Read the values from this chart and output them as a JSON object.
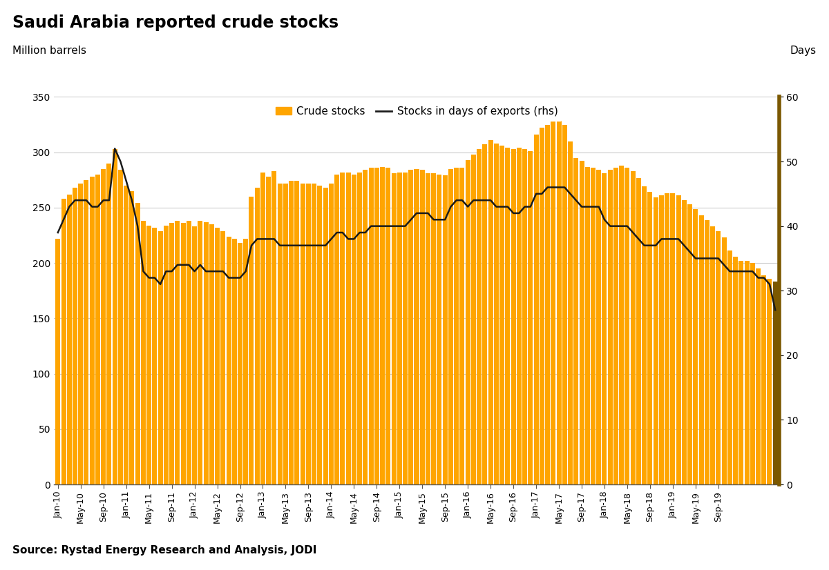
{
  "title": "Saudi Arabia reported crude stocks",
  "subtitle_left": "Million barrels",
  "subtitle_right": "Days",
  "source": "Source: Rystad Energy Research and Analysis, JODI",
  "bar_color": "#FFA500",
  "line_color": "#1a1a1a",
  "ylim_left": [
    0,
    350
  ],
  "ylim_right": [
    0,
    60
  ],
  "yticks_left": [
    0,
    50,
    100,
    150,
    200,
    250,
    300,
    350
  ],
  "yticks_right": [
    0,
    10,
    20,
    30,
    40,
    50,
    60
  ],
  "legend_bar": "Crude stocks",
  "legend_line": "Stocks in days of exports (rhs)",
  "bar_values": [
    222,
    258,
    262,
    268,
    272,
    275,
    278,
    280,
    285,
    290,
    303,
    284,
    270,
    265,
    254,
    238,
    234,
    232,
    229,
    234,
    236,
    238,
    236,
    238,
    233,
    238,
    237,
    235,
    232,
    229,
    224,
    222,
    218,
    222,
    260,
    268,
    282,
    278,
    283,
    272,
    272,
    274,
    274,
    272,
    272,
    272,
    270,
    268,
    272,
    280,
    282,
    282,
    280,
    282,
    284,
    286,
    286,
    287,
    286,
    281,
    282,
    282,
    284,
    285,
    284,
    281,
    281,
    280,
    279,
    285,
    286,
    286,
    293,
    298,
    303,
    307,
    311,
    308,
    306,
    304,
    303,
    304,
    303,
    301,
    316,
    322,
    325,
    329,
    333,
    325,
    310,
    295,
    292,
    287,
    286,
    284,
    281,
    284,
    286,
    288,
    286,
    283,
    277,
    269,
    264,
    259,
    261,
    263,
    263,
    261,
    257,
    253,
    249,
    243,
    239,
    233,
    229,
    223,
    211,
    206,
    202,
    202,
    200,
    195,
    189,
    186,
    183
  ],
  "line_values": [
    39,
    41,
    43,
    44,
    44,
    44,
    43,
    43,
    44,
    44,
    52,
    50,
    47,
    44,
    40,
    33,
    32,
    32,
    31,
    33,
    33,
    34,
    34,
    34,
    33,
    34,
    33,
    33,
    33,
    33,
    32,
    32,
    32,
    33,
    37,
    38,
    38,
    38,
    38,
    37,
    37,
    37,
    37,
    37,
    37,
    37,
    37,
    37,
    38,
    39,
    39,
    38,
    38,
    39,
    39,
    40,
    40,
    40,
    40,
    40,
    40,
    40,
    41,
    42,
    42,
    42,
    41,
    41,
    41,
    43,
    44,
    44,
    43,
    44,
    44,
    44,
    44,
    43,
    43,
    43,
    42,
    42,
    43,
    43,
    45,
    45,
    46,
    46,
    46,
    46,
    45,
    44,
    43,
    43,
    43,
    43,
    41,
    40,
    40,
    40,
    40,
    39,
    38,
    37,
    37,
    37,
    38,
    38,
    38,
    38,
    37,
    36,
    35,
    35,
    35,
    35,
    35,
    34,
    33,
    33,
    33,
    33,
    33,
    32,
    32,
    31,
    27
  ],
  "x_tick_positions": [
    0,
    4,
    8,
    12,
    16,
    20,
    24,
    28,
    32,
    36,
    40,
    44,
    48,
    52,
    56,
    60,
    64,
    68,
    72,
    76,
    80,
    84,
    88,
    92,
    96,
    100,
    104,
    108,
    112,
    116
  ],
  "x_tick_labels": [
    "Jan-10",
    "May-10",
    "Sep-10",
    "Jan-11",
    "May-11",
    "Sep-11",
    "Jan-12",
    "May-12",
    "Sep-12",
    "Jan-13",
    "May-13",
    "Sep-13",
    "Jan-14",
    "May-14",
    "Sep-14",
    "Jan-15",
    "May-15",
    "Sep-15",
    "Jan-16",
    "May-16",
    "Sep-16",
    "Jan-17",
    "May-17",
    "Sep-17",
    "Jan-18",
    "May-18",
    "Sep-18",
    "Jan-19",
    "May-19",
    "Sep-19"
  ],
  "background_color": "#ffffff",
  "grid_color": "#cccccc",
  "last_bar_color": "#7B5800",
  "right_spine_color": "#7B5800",
  "fig_width": 12.0,
  "fig_height": 8.26
}
